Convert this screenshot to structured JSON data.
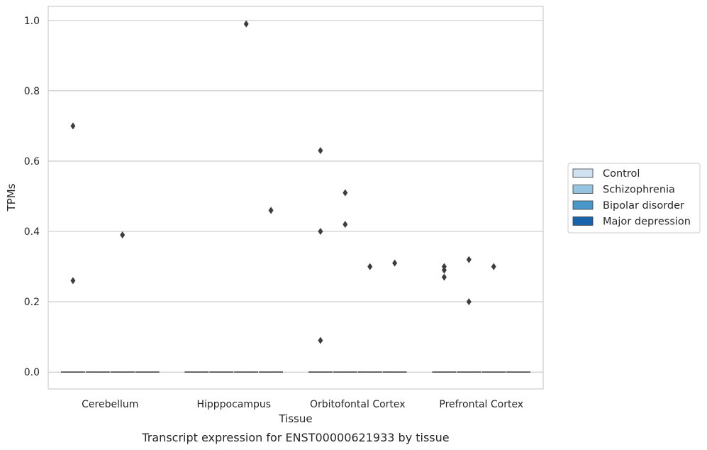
{
  "caption": "Transcript expression for ENST00000621933 by tissue",
  "chart_data": {
    "type": "box",
    "xlabel": "Tissue",
    "ylabel": "TPMs",
    "ylim": [
      -0.048,
      1.04
    ],
    "yticks": [
      0.0,
      0.2,
      0.4,
      0.6,
      0.8,
      1.0
    ],
    "ytick_labels": [
      "0.0",
      "0.2",
      "0.4",
      "0.6",
      "0.8",
      "1.0"
    ],
    "grid": "horizontal",
    "categories": [
      "Cerebellum",
      "Hipppocampus",
      "Orbitofontal Cortex",
      "Prefrontal Cortex"
    ],
    "series": [
      {
        "name": "Control",
        "color": "#d0e1f2",
        "median": [
          0,
          0,
          0,
          0
        ],
        "outliers": [
          [
            0.7,
            0.26
          ],
          [],
          [
            0.63,
            0.4,
            0.09
          ],
          [
            0.3,
            0.29,
            0.27
          ]
        ]
      },
      {
        "name": "Schizophrenia",
        "color": "#94c4df",
        "median": [
          0,
          0,
          0,
          0
        ],
        "outliers": [
          [],
          [],
          [
            0.51,
            0.42
          ],
          [
            0.32,
            0.2
          ]
        ]
      },
      {
        "name": "Bipolar disorder",
        "color": "#4a98c9",
        "median": [
          0,
          0,
          0,
          0
        ],
        "outliers": [
          [
            0.39
          ],
          [
            0.99
          ],
          [
            0.3
          ],
          [
            0.3
          ]
        ]
      },
      {
        "name": "Major depression",
        "color": "#1764ab",
        "median": [
          0,
          0,
          0,
          0
        ],
        "outliers": [
          [],
          [
            0.46
          ],
          [
            0.31
          ],
          []
        ]
      }
    ],
    "legend": "right"
  }
}
